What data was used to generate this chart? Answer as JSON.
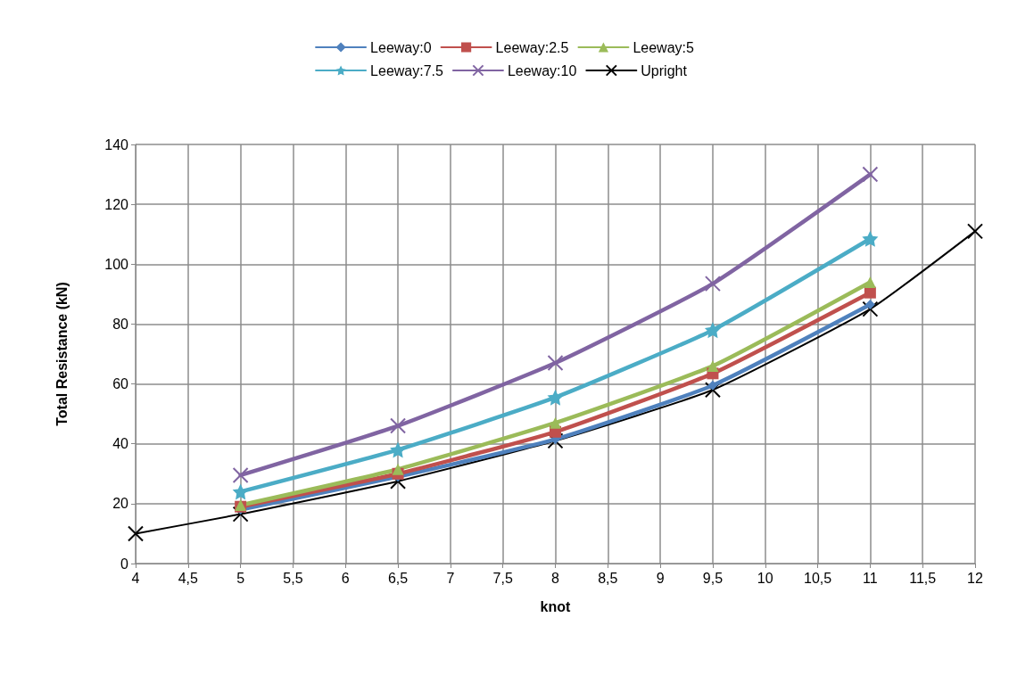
{
  "chart_data": {
    "type": "line",
    "xlabel": "knot",
    "ylabel": "Total Resistance (kN)",
    "xlim": [
      4,
      12
    ],
    "xticks": [
      4,
      {
        "value": 4.5,
        "label": "4,5"
      },
      5,
      {
        "value": 5.5,
        "label": "5,5"
      },
      6,
      {
        "value": 6.5,
        "label": "6,5"
      },
      7,
      {
        "value": 7.5,
        "label": "7,5"
      },
      8,
      {
        "value": 8.5,
        "label": "8,5"
      },
      9,
      {
        "value": 9.5,
        "label": "9,5"
      },
      10,
      {
        "value": 10.5,
        "label": "10,5"
      },
      11,
      {
        "value": 11.5,
        "label": "11,5"
      },
      12
    ],
    "ylim": [
      0,
      140
    ],
    "yticks": [
      0,
      20,
      40,
      60,
      80,
      100,
      120,
      140
    ],
    "grid": true,
    "legend": "top",
    "series": [
      {
        "name": "Leeway:0",
        "color": "#4f81bd",
        "marker": "diamond",
        "x": [
          5,
          6.5,
          8,
          9.5,
          11
        ],
        "values": [
          18,
          29,
          41.5,
          59.5,
          86.5
        ]
      },
      {
        "name": "Leeway:2.5",
        "color": "#c0504d",
        "marker": "square",
        "x": [
          5,
          6.5,
          8,
          9.5,
          11
        ],
        "values": [
          19,
          30,
          44,
          63.5,
          90.5
        ]
      },
      {
        "name": "Leeway:5",
        "color": "#9bbb59",
        "marker": "triangle",
        "x": [
          5,
          6.5,
          8,
          9.5,
          11
        ],
        "values": [
          19.5,
          31.5,
          47,
          66,
          94
        ]
      },
      {
        "name": "Leeway:7.5",
        "color": "#4bacc6",
        "marker": "star",
        "x": [
          5,
          6.5,
          8,
          9.5,
          11
        ],
        "values": [
          24,
          38,
          55.5,
          78,
          108.5
        ]
      },
      {
        "name": "Leeway:10",
        "color": "#8064a2",
        "marker": "cross",
        "x": [
          5,
          6.5,
          8,
          9.5,
          11
        ],
        "values": [
          29.5,
          46,
          67,
          93.5,
          130
        ]
      },
      {
        "name": "Upright",
        "color": "#000000",
        "marker": "cross",
        "x": [
          4,
          5,
          6.5,
          8,
          9.5,
          11,
          12
        ],
        "values": [
          10,
          16.5,
          27.5,
          41,
          58,
          85,
          111
        ]
      }
    ]
  }
}
